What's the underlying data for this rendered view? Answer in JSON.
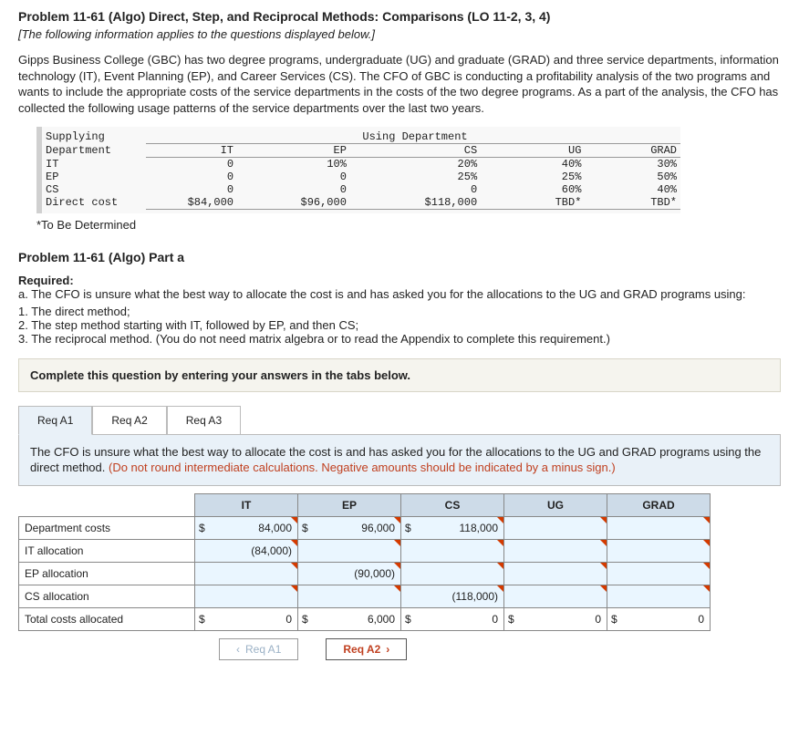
{
  "header": {
    "title": "Problem 11-61 (Algo) Direct, Step, and Reciprocal Methods: Comparisons (LO 11-2, 3, 4)",
    "applies_note": "[The following information applies to the questions displayed below.]",
    "scenario": "Gipps Business College (GBC) has two degree programs, undergraduate (UG) and graduate (GRAD) and three service departments, information technology (IT), Event Planning (EP), and Career Services (CS). The CFO of GBC is conducting a profitability analysis of the two programs and wants to include the appropriate costs of the service departments in the costs of the two degree programs. As a part of the analysis, the CFO has collected the following usage patterns of the service departments over the last two years."
  },
  "usage_table": {
    "supplying_label": "Supplying",
    "department_label": "Department",
    "using_label": "Using Department",
    "cols": {
      "it": "IT",
      "ep": "EP",
      "cs": "CS",
      "ug": "UG",
      "grad": "GRAD"
    },
    "rows": [
      {
        "label": "IT",
        "it": "0",
        "ep": "10%",
        "cs": "20%",
        "ug": "40%",
        "grad": "30%"
      },
      {
        "label": "EP",
        "it": "0",
        "ep": "0",
        "cs": "25%",
        "ug": "25%",
        "grad": "50%"
      },
      {
        "label": "CS",
        "it": "0",
        "ep": "0",
        "cs": "0",
        "ug": "60%",
        "grad": "40%"
      },
      {
        "label": "Direct cost",
        "it": "$84,000",
        "ep": "$96,000",
        "cs": "$118,000",
        "ug": "TBD*",
        "grad": "TBD*"
      }
    ],
    "footnote": "*To Be Determined"
  },
  "part": {
    "title": "Problem 11-61 (Algo) Part a",
    "required_label": "Required:",
    "a_text": "a. The CFO is unsure what the best way to allocate the cost is and has asked you for the allocations to the UG and GRAD programs using:",
    "items": [
      "1. The direct method;",
      "2. The step method starting with IT, followed by EP, and then CS;",
      "3. The reciprocal method. (You do not need matrix algebra or to read the Appendix to complete this requirement.)"
    ],
    "banner": "Complete this question by entering your answers in the tabs below."
  },
  "tabs": {
    "a1": "Req A1",
    "a2": "Req A2",
    "a3": "Req A3",
    "body_main": "The CFO is unsure what the best way to allocate the cost is and has asked you for the allocations to the UG and GRAD programs using the direct method. ",
    "body_red": "(Do not round intermediate calculations. Negative amounts should be indicated by a minus sign.)"
  },
  "answer": {
    "headers": {
      "it": "IT",
      "ep": "EP",
      "cs": "CS",
      "ug": "UG",
      "grad": "GRAD"
    },
    "rows": {
      "dept_costs": {
        "label": "Department costs",
        "it": "84,000",
        "ep": "96,000",
        "cs": "118,000"
      },
      "it_alloc": {
        "label": "IT allocation",
        "it": "(84,000)"
      },
      "ep_alloc": {
        "label": "EP allocation",
        "ep": "(90,000)"
      },
      "cs_alloc": {
        "label": "CS allocation",
        "cs": "(118,000)"
      },
      "total": {
        "label": "Total costs allocated",
        "it": "0",
        "ep": "6,000",
        "cs": "0",
        "ug": "0",
        "grad": "0"
      }
    }
  },
  "nav": {
    "prev": "Req A1",
    "next": "Req A2"
  }
}
